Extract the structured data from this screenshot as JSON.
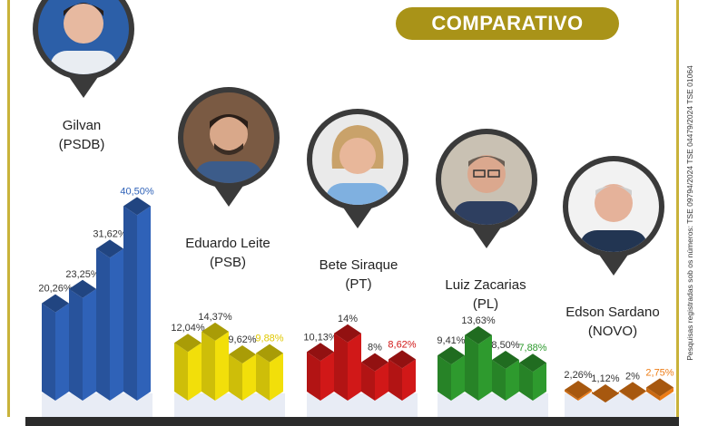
{
  "header": {
    "title": "COMPARATIVO"
  },
  "disclaimer": "Pesquisas registradas sob os números: TSE 09794/2024 TSE 04479/2024 TSE 01064",
  "colors": {
    "gold": "#a99318",
    "blue": "#2f62b8",
    "yellow": "#f2df0a",
    "red": "#d11818",
    "green": "#2e9a2e",
    "orange": "#ee7d16"
  },
  "chart_data": {
    "type": "bar",
    "series": [
      {
        "name": "Gilvan",
        "party": "(PSDB)",
        "color": "blue",
        "values": [
          20.26,
          23.25,
          31.62,
          40.5
        ],
        "labels": [
          "20,26%",
          "23,25%",
          "31,62%",
          "40,50%"
        ],
        "label_colors": [
          "#333333",
          "#333333",
          "#333333",
          "#2f62b8"
        ]
      },
      {
        "name": "Eduardo Leite",
        "party": "(PSB)",
        "color": "yellow",
        "values": [
          12.04,
          14.37,
          9.62,
          9.88
        ],
        "labels": [
          "12,04%",
          "14,37%",
          "9,62%",
          "9,88%"
        ],
        "label_colors": [
          "#333333",
          "#333333",
          "#333333",
          "#e0c800"
        ]
      },
      {
        "name": "Bete Siraque",
        "party": "(PT)",
        "color": "red",
        "values": [
          10.13,
          14,
          8,
          8.62
        ],
        "labels": [
          "10,13%",
          "14%",
          "8%",
          "8,62%"
        ],
        "label_colors": [
          "#333333",
          "#333333",
          "#333333",
          "#d11818"
        ]
      },
      {
        "name": "Luiz Zacarias",
        "party": "(PL)",
        "color": "green",
        "values": [
          9.41,
          13.63,
          8.5,
          7.88
        ],
        "labels": [
          "9,41%",
          "13,63%",
          "8,50%",
          "7,88%"
        ],
        "label_colors": [
          "#333333",
          "#333333",
          "#333333",
          "#2e9a2e"
        ]
      },
      {
        "name": "Edson Sardano",
        "party": "(NOVO)",
        "color": "orange",
        "values": [
          2.26,
          1.12,
          2,
          2.75
        ],
        "labels": [
          "2,26%",
          "1,12%",
          "2%",
          "2,75%"
        ],
        "label_colors": [
          "#333333",
          "#333333",
          "#333333",
          "#ee7d16"
        ]
      }
    ]
  }
}
